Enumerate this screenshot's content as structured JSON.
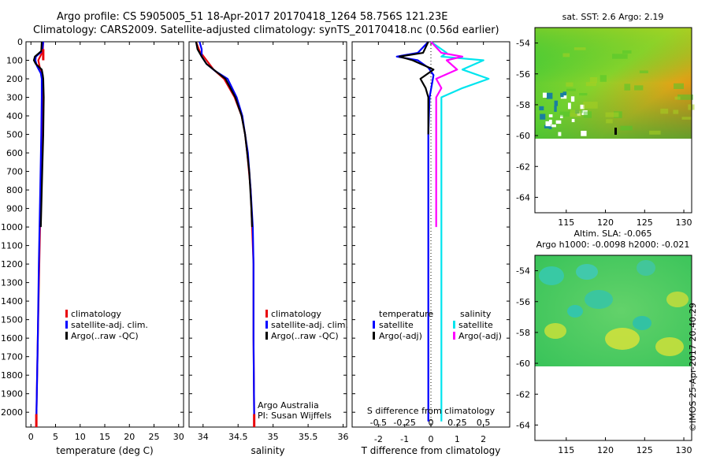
{
  "header": {
    "line1": "Argo profile: CS 5905005_51 18-Apr-2017 20170418_1264 58.756S 121.23E",
    "line2": "Climatology: CARS2009. Satellite-adjusted climatology: synTS_20170418.nc (0.56d earlier)"
  },
  "credit": "©IMOS 25-Apr-2017 20:40:29",
  "depth_ticks": [
    "0",
    "100",
    "200",
    "300",
    "400",
    "500",
    "600",
    "700",
    "800",
    "900",
    "1000",
    "1100",
    "1200",
    "1300",
    "1400",
    "1500",
    "1600",
    "1700",
    "1800",
    "1900",
    "2000"
  ],
  "colors": {
    "climatology": "#e8000a",
    "satellite": "#0000ff",
    "argo": "#000000",
    "sat_salinity": "#00e5ee",
    "argo_adj_salinity": "#ff00ff"
  },
  "chart_data": [
    {
      "type": "line",
      "id": "temperature",
      "xlabel": "temperature (deg C)",
      "ylabel": "",
      "xlim": [
        -1,
        31
      ],
      "ylim": [
        2080,
        0
      ],
      "x_ticks": [
        "0",
        "5",
        "10",
        "15",
        "20",
        "25",
        "30"
      ],
      "legend": [
        "climatology",
        "satellite-adj. clim.",
        "Argo(..raw -QC)"
      ],
      "series": [
        {
          "name": "climatology",
          "depth": [
            0,
            50,
            100,
            150,
            200,
            300,
            500,
            800,
            1200,
            1600,
            2050
          ],
          "values": [
            2.5,
            2.4,
            1.5,
            1.9,
            2.3,
            2.3,
            2.2,
            2.0,
            1.7,
            1.4,
            1.1
          ]
        },
        {
          "name": "satellite-adj. clim.",
          "depth": [
            0,
            50,
            80,
            100,
            130,
            170,
            200,
            300,
            500,
            800,
            1200,
            1600,
            2050
          ],
          "values": [
            2.5,
            2.3,
            1.0,
            0.9,
            1.2,
            2.0,
            2.2,
            2.2,
            2.1,
            1.9,
            1.6,
            1.4,
            1.1
          ]
        },
        {
          "name": "Argo(..raw -QC)",
          "depth": [
            0,
            50,
            80,
            100,
            120,
            150,
            180,
            200,
            300,
            500,
            700,
            900,
            1000
          ],
          "values": [
            2.2,
            2.1,
            0.8,
            0.6,
            1.0,
            2.2,
            2.4,
            2.5,
            2.6,
            2.5,
            2.3,
            2.1,
            2.0
          ]
        }
      ]
    },
    {
      "type": "line",
      "id": "salinity",
      "xlabel": "salinity",
      "ylabel": "",
      "xlim": [
        33.8,
        36.05
      ],
      "ylim": [
        2080,
        0
      ],
      "x_ticks": [
        "34",
        "34.5",
        "35",
        "35.5",
        "36"
      ],
      "legend": [
        "climatology",
        "satellite-adj. clim.",
        "Argo(..raw -QC)"
      ],
      "footnote": [
        "Argo Australia",
        "PI: Susan Wijffels"
      ],
      "series": [
        {
          "name": "climatology",
          "depth": [
            0,
            50,
            100,
            150,
            200,
            300,
            400,
            500,
            600,
            800,
            1000,
            1200,
            1600,
            2050
          ],
          "values": [
            33.9,
            33.95,
            34.05,
            34.15,
            34.3,
            34.45,
            34.55,
            34.6,
            34.63,
            34.68,
            34.7,
            34.72,
            34.72,
            34.73
          ]
        },
        {
          "name": "satellite-adj. clim.",
          "depth": [
            0,
            40,
            80,
            120,
            160,
            200,
            300,
            400,
            500,
            600,
            800,
            1000,
            1200,
            1600,
            2050
          ],
          "values": [
            33.95,
            33.98,
            33.98,
            34.05,
            34.18,
            34.35,
            34.48,
            34.56,
            34.6,
            34.64,
            34.68,
            34.71,
            34.72,
            34.72,
            34.73
          ]
        },
        {
          "name": "Argo(..raw -QC)",
          "depth": [
            0,
            40,
            80,
            120,
            150,
            180,
            200,
            300,
            400,
            500,
            700,
            900,
            1000
          ],
          "values": [
            33.9,
            33.92,
            33.98,
            34.05,
            34.15,
            34.25,
            34.32,
            34.46,
            34.55,
            34.6,
            34.66,
            34.69,
            34.7
          ]
        }
      ]
    },
    {
      "type": "line",
      "id": "difference",
      "xlabel": "T difference from climatology",
      "xlabel2": "S difference from climatology",
      "ylabel": "",
      "xlim": [
        -3,
        3
      ],
      "ylim": [
        2080,
        0
      ],
      "x_ticks": [
        "-2",
        "-1",
        "0",
        "1",
        "2"
      ],
      "x2_ticks": [
        "-0.5",
        "-0.25",
        "0",
        "0.25",
        "0.5"
      ],
      "legend_title_t": "temperature",
      "legend_title_s": "salinity",
      "legend": [
        "satellite",
        "Argo(-adj)",
        "satellite",
        "Argo(-adj)"
      ],
      "series": [
        {
          "name": "temperature satellite",
          "depth": [
            0,
            60,
            80,
            100,
            140,
            180,
            220,
            300,
            500,
            1000,
            1500,
            2050
          ],
          "values": [
            -0.1,
            -0.5,
            -1.3,
            -0.5,
            -0.1,
            0.1,
            0.05,
            -0.05,
            -0.1,
            -0.1,
            -0.1,
            -0.1
          ]
        },
        {
          "name": "temperature Argo(-adj)",
          "depth": [
            0,
            60,
            80,
            100,
            150,
            200,
            250,
            300,
            500
          ],
          "values": [
            -0.1,
            -0.3,
            -1.2,
            -0.7,
            0.1,
            -0.4,
            -0.2,
            -0.1,
            -0.1
          ]
        },
        {
          "name": "salinity satellite",
          "depth": [
            0,
            60,
            80,
            100,
            150,
            200,
            250,
            300,
            500,
            1000,
            1500,
            2050
          ],
          "values": [
            0.0,
            0.15,
            0.1,
            0.5,
            0.3,
            0.55,
            0.3,
            0.1,
            0.1,
            0.1,
            0.1,
            0.1
          ]
        },
        {
          "name": "salinity Argo(-adj)",
          "depth": [
            0,
            60,
            80,
            100,
            150,
            200,
            250,
            300,
            500,
            800,
            1000
          ],
          "values": [
            0.0,
            0.1,
            0.3,
            0.15,
            0.25,
            0.05,
            0.1,
            0.05,
            0.05,
            0.05,
            0.05
          ]
        }
      ]
    },
    {
      "type": "heatmap",
      "id": "sst_map",
      "title": "sat. SST: 2.6 Argo: 2.19",
      "x_ticks": [
        "115",
        "120",
        "125",
        "130"
      ],
      "y_ticks": [
        "-54",
        "-56",
        "-58",
        "-60",
        "-62",
        "-64"
      ],
      "xlim": [
        111,
        131
      ],
      "ylim": [
        -65,
        -53
      ]
    },
    {
      "type": "heatmap",
      "id": "sla_map",
      "title": "Altim. SLA: -0.065",
      "subtitle": "Argo h1000: -0.0098 h2000: -0.021",
      "x_ticks": [
        "115",
        "120",
        "125",
        "130"
      ],
      "y_ticks": [
        "-54",
        "-56",
        "-58",
        "-60",
        "-62",
        "-64"
      ],
      "xlim": [
        111,
        131
      ],
      "ylim": [
        -65,
        -53
      ]
    }
  ]
}
